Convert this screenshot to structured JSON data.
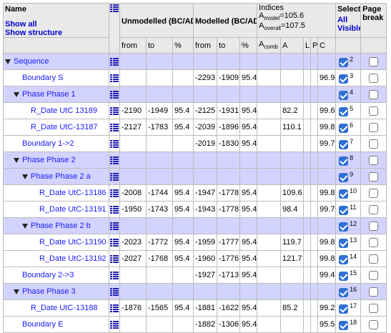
{
  "headers": {
    "name": "Name",
    "show_all": "Show all",
    "show_structure": "Show structure",
    "unmodelled": "Unmodelled (BC/AD)",
    "modelled": "Modelled (BC/AD)",
    "indices_title": "Indices",
    "a_model_label": "A",
    "a_model_sub": "model",
    "a_model_val": "=105.6",
    "a_overall_label": "A",
    "a_overall_sub": "overall",
    "a_overall_val": "=107.5",
    "select": "Select",
    "all": "All",
    "visible": "Visible",
    "page_break": "Page break",
    "from": "from",
    "to": "to",
    "pct": "%",
    "m_from": "from",
    "m_to": "to",
    "m_pct": "%",
    "acomb_label": "A",
    "acomb_sub": "comb",
    "a": "A",
    "l": "L",
    "p": "P",
    "c": "C"
  },
  "rows": [
    {
      "name": "Sequence",
      "indent": 0,
      "group": true,
      "expand": true,
      "u_from": "",
      "u_to": "",
      "u_pct": "",
      "m_from": "",
      "m_to": "",
      "m_pct": "",
      "acomb": "",
      "a": "",
      "l": "",
      "p": "",
      "c": "",
      "sel": "2"
    },
    {
      "name": "Boundary S",
      "indent": 1,
      "group": false,
      "expand": false,
      "u_from": "",
      "u_to": "",
      "u_pct": "",
      "m_from": "-2293",
      "m_to": "-1909",
      "m_pct": "95.4",
      "acomb": "",
      "a": "",
      "l": "",
      "p": "",
      "c": "96.9",
      "sel": "3"
    },
    {
      "name": "Phase Phase 1",
      "indent": 1,
      "group": true,
      "expand": true,
      "u_from": "",
      "u_to": "",
      "u_pct": "",
      "m_from": "",
      "m_to": "",
      "m_pct": "",
      "acomb": "",
      "a": "",
      "l": "",
      "p": "",
      "c": "",
      "sel": "4"
    },
    {
      "name": "R_Date UtC 13189",
      "indent": 2,
      "group": false,
      "expand": false,
      "u_from": "-2190",
      "u_to": "-1949",
      "u_pct": "95.4",
      "m_from": "-2125",
      "m_to": "-1931",
      "m_pct": "95.4",
      "acomb": "",
      "a": "82.2",
      "l": "",
      "p": "",
      "c": "99.6",
      "sel": "5"
    },
    {
      "name": "R_Date UtC-13187",
      "indent": 2,
      "group": false,
      "expand": false,
      "u_from": "-2127",
      "u_to": "-1783",
      "u_pct": "95.4",
      "m_from": "-2039",
      "m_to": "-1896",
      "m_pct": "95.4",
      "acomb": "",
      "a": "110.1",
      "l": "",
      "p": "",
      "c": "99.8",
      "sel": "6"
    },
    {
      "name": "Boundary 1->2",
      "indent": 1,
      "group": false,
      "expand": false,
      "u_from": "",
      "u_to": "",
      "u_pct": "",
      "m_from": "-2019",
      "m_to": "-1830",
      "m_pct": "95.4",
      "acomb": "",
      "a": "",
      "l": "",
      "p": "",
      "c": "99.7",
      "sel": "7"
    },
    {
      "name": "Phase Phase 2",
      "indent": 1,
      "group": true,
      "expand": true,
      "u_from": "",
      "u_to": "",
      "u_pct": "",
      "m_from": "",
      "m_to": "",
      "m_pct": "",
      "acomb": "",
      "a": "",
      "l": "",
      "p": "",
      "c": "",
      "sel": "8"
    },
    {
      "name": "Phase Phase 2 a",
      "indent": 2,
      "group": true,
      "expand": true,
      "u_from": "",
      "u_to": "",
      "u_pct": "",
      "m_from": "",
      "m_to": "",
      "m_pct": "",
      "acomb": "",
      "a": "",
      "l": "",
      "p": "",
      "c": "",
      "sel": "9"
    },
    {
      "name": "R_Date UtC-13186",
      "indent": 3,
      "group": false,
      "expand": false,
      "u_from": "-2008",
      "u_to": "-1744",
      "u_pct": "95.4",
      "m_from": "-1947",
      "m_to": "-1778",
      "m_pct": "95.4",
      "acomb": "",
      "a": "109.6",
      "l": "",
      "p": "",
      "c": "99.8",
      "sel": "10"
    },
    {
      "name": "R_Date UtC-13191",
      "indent": 3,
      "group": false,
      "expand": false,
      "u_from": "-1950",
      "u_to": "-1743",
      "u_pct": "95.4",
      "m_from": "-1943",
      "m_to": "-1778",
      "m_pct": "95.4",
      "acomb": "",
      "a": "98.4",
      "l": "",
      "p": "",
      "c": "99.7",
      "sel": "11"
    },
    {
      "name": "Phase Phase 2 b",
      "indent": 2,
      "group": true,
      "expand": true,
      "u_from": "",
      "u_to": "",
      "u_pct": "",
      "m_from": "",
      "m_to": "",
      "m_pct": "",
      "acomb": "",
      "a": "",
      "l": "",
      "p": "",
      "c": "",
      "sel": "12"
    },
    {
      "name": "R_Date UtC-13190",
      "indent": 3,
      "group": false,
      "expand": false,
      "u_from": "-2023",
      "u_to": "-1772",
      "u_pct": "95.4",
      "m_from": "-1959",
      "m_to": "-1777",
      "m_pct": "95.4",
      "acomb": "",
      "a": "119.7",
      "l": "",
      "p": "",
      "c": "99.8",
      "sel": "13"
    },
    {
      "name": "R_Date UtC-13192",
      "indent": 3,
      "group": false,
      "expand": false,
      "u_from": "-2027",
      "u_to": "-1768",
      "u_pct": "95.4",
      "m_from": "-1960",
      "m_to": "-1776",
      "m_pct": "95.4",
      "acomb": "",
      "a": "121.7",
      "l": "",
      "p": "",
      "c": "99.8",
      "sel": "14"
    },
    {
      "name": "Boundary 2->3",
      "indent": 1,
      "group": false,
      "expand": false,
      "u_from": "",
      "u_to": "",
      "u_pct": "",
      "m_from": "-1927",
      "m_to": "-1713",
      "m_pct": "95.4",
      "acomb": "",
      "a": "",
      "l": "",
      "p": "",
      "c": "99.4",
      "sel": "15"
    },
    {
      "name": "Phase Phase 3",
      "indent": 1,
      "group": true,
      "expand": true,
      "u_from": "",
      "u_to": "",
      "u_pct": "",
      "m_from": "",
      "m_to": "",
      "m_pct": "",
      "acomb": "",
      "a": "",
      "l": "",
      "p": "",
      "c": "",
      "sel": "16"
    },
    {
      "name": "R_Date UtC-13188",
      "indent": 2,
      "group": false,
      "expand": false,
      "u_from": "-1876",
      "u_to": "-1565",
      "u_pct": "95.4",
      "m_from": "-1881",
      "m_to": "-1622",
      "m_pct": "95.4",
      "acomb": "",
      "a": "85.2",
      "l": "",
      "p": "",
      "c": "99.2",
      "sel": "17"
    },
    {
      "name": "Boundary E",
      "indent": 1,
      "group": false,
      "expand": false,
      "u_from": "",
      "u_to": "",
      "u_pct": "",
      "m_from": "-1882",
      "m_to": "-1306",
      "m_pct": "95.4",
      "acomb": "",
      "a": "",
      "l": "",
      "p": "",
      "c": "95.5",
      "sel": "18"
    }
  ],
  "colors": {
    "group_row": "#d3d3ff",
    "header_bg": "#e9e9e9",
    "link": "#1a1aff",
    "checkbox_on": "#2f6fd6"
  },
  "icons": {
    "structure": "list-icon",
    "expand": "triangle-down-icon",
    "checkbox": "checkbox-icon"
  }
}
